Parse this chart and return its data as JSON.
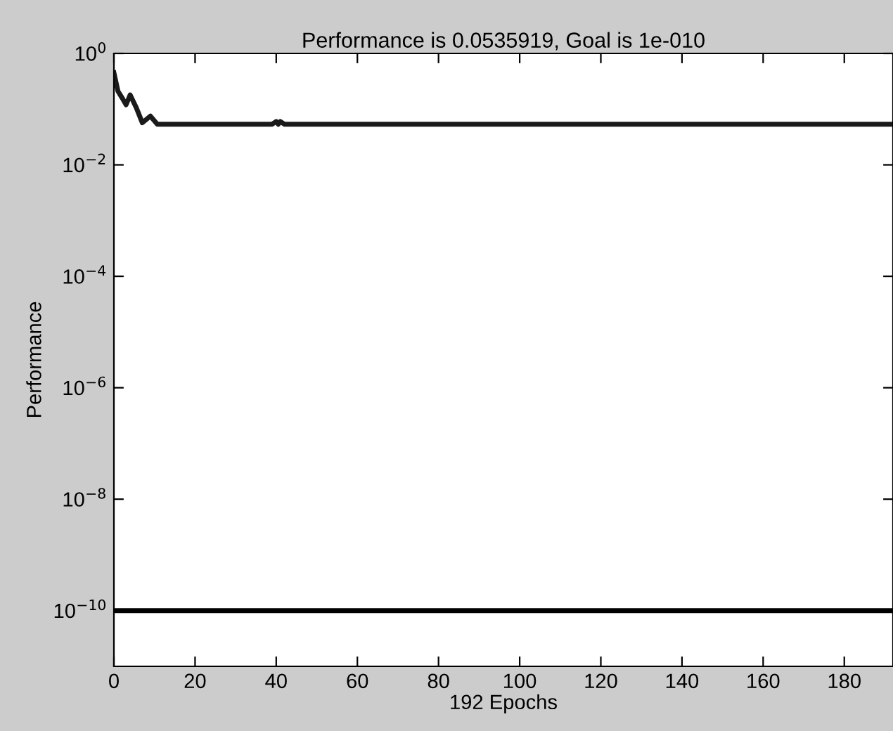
{
  "chart_data": {
    "type": "line",
    "title": "Performance is 0.0535919, Goal is 1e-010",
    "xlabel": "192 Epochs",
    "ylabel": "Performance",
    "log": "y",
    "xlim": [
      0,
      192
    ],
    "xticks": [
      0,
      20,
      40,
      60,
      80,
      100,
      120,
      140,
      160,
      180
    ],
    "ylim": [
      1e-11,
      1
    ],
    "yticks": [
      {
        "value": 1,
        "label": "10$^{0}$"
      },
      {
        "value": 0.01,
        "label": "10$^{−2}$"
      },
      {
        "value": 0.0001,
        "label": "10$^{−4}$"
      },
      {
        "value": 1e-06,
        "label": "10$^{−6}$"
      },
      {
        "value": 1e-08,
        "label": "10$^{−8}$"
      },
      {
        "value": 1e-10,
        "label": "10$^{−10}$"
      }
    ],
    "grid": false,
    "legend": false,
    "line_style": "solid",
    "marker": "none",
    "series": [
      {
        "color": "#1a1a1a",
        "x": [
          0,
          1,
          2,
          3,
          4,
          5.5,
          7,
          9,
          10.7,
          39,
          40,
          40.5,
          41,
          42,
          192
        ],
        "values": [
          0.45,
          0.21,
          0.16,
          0.12,
          0.18,
          0.107,
          0.057,
          0.075,
          0.0536,
          0.0536,
          0.06,
          0.0536,
          0.06,
          0.0536,
          0.0536
        ]
      }
    ],
    "ref_lines": [
      {
        "axis": "y",
        "value": 1e-10,
        "color": "#000000",
        "line_style": "solid"
      }
    ]
  }
}
